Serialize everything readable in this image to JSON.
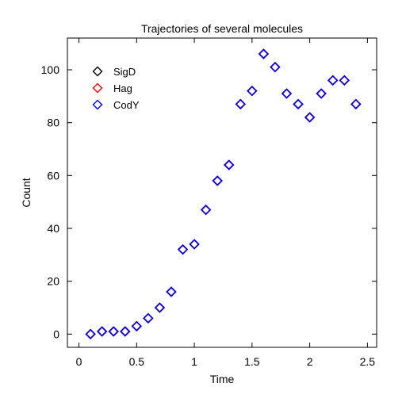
{
  "chart_data": {
    "type": "scatter",
    "title": "Trajectories of several molecules",
    "xlabel": "Time",
    "ylabel": "Count",
    "xlim": [
      -0.1,
      2.58
    ],
    "ylim": [
      -5,
      112
    ],
    "xticks": [
      0,
      0.5,
      1,
      1.5,
      2,
      2.5
    ],
    "xtick_labels": [
      "0",
      "0.5",
      "1",
      "1.5",
      "2",
      "2.5"
    ],
    "yticks": [
      0,
      20,
      40,
      60,
      80,
      100
    ],
    "ytick_labels": [
      "0",
      "20",
      "40",
      "60",
      "80",
      "100"
    ],
    "grid": false,
    "legend_position": "top-left",
    "marker": "diamond",
    "x": [
      0.1,
      0.2,
      0.3,
      0.4,
      0.5,
      0.6,
      0.7,
      0.8,
      0.9,
      1.0,
      1.1,
      1.2,
      1.3,
      1.4,
      1.5,
      1.6,
      1.7,
      1.8,
      1.9,
      2.0,
      2.1,
      2.2,
      2.3,
      2.4
    ],
    "series": [
      {
        "name": "SigD",
        "color": "#000000",
        "values": [
          0,
          1,
          1,
          1,
          3,
          6,
          10,
          16,
          32,
          34,
          47,
          58,
          64,
          87,
          92,
          106,
          101,
          91,
          87,
          82,
          91,
          96,
          96,
          87
        ]
      },
      {
        "name": "Hag",
        "color": "#ff0000",
        "values": [
          0,
          1,
          1,
          1,
          3,
          6,
          10,
          16,
          32,
          34,
          47,
          58,
          64,
          87,
          92,
          106,
          101,
          91,
          87,
          82,
          91,
          96,
          96,
          87
        ]
      },
      {
        "name": "CodY",
        "color": "#0000ff",
        "values": [
          0,
          1,
          1,
          1,
          3,
          6,
          10,
          16,
          32,
          34,
          47,
          58,
          64,
          87,
          92,
          106,
          101,
          91,
          87,
          82,
          91,
          96,
          96,
          87
        ]
      }
    ]
  }
}
